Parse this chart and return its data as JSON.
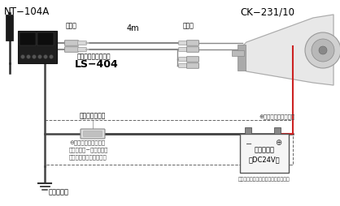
{
  "bg_color": "#ffffff",
  "label_NT104A": "NT−104A",
  "label_CK231": "CK−231/10",
  "label_LS404": "LS−404",
  "label_4m": "4m",
  "label_giboshi_left": "ギボシ",
  "label_giboshi_right": "ギボシ",
  "label_speaker_cord": "スピーカ接続コード",
  "label_fuse": "ヒューズホルダ",
  "label_plus_cord": "⊕側電源コード（赤）",
  "label_minus_cord": "⊖側電源コード（黒）",
  "label_battery_neg_desc": "バッテリー−端子または",
  "label_body_earth_desc": "車体アースのいずれかへ",
  "label_body_earth": "車体アース",
  "label_battery": "バッテリー",
  "label_battery_voltage": "（DC24V）",
  "label_battery_note": "（バッテリーは付属しておりません）",
  "figsize": [
    4.18,
    2.54
  ],
  "dpi": 100
}
